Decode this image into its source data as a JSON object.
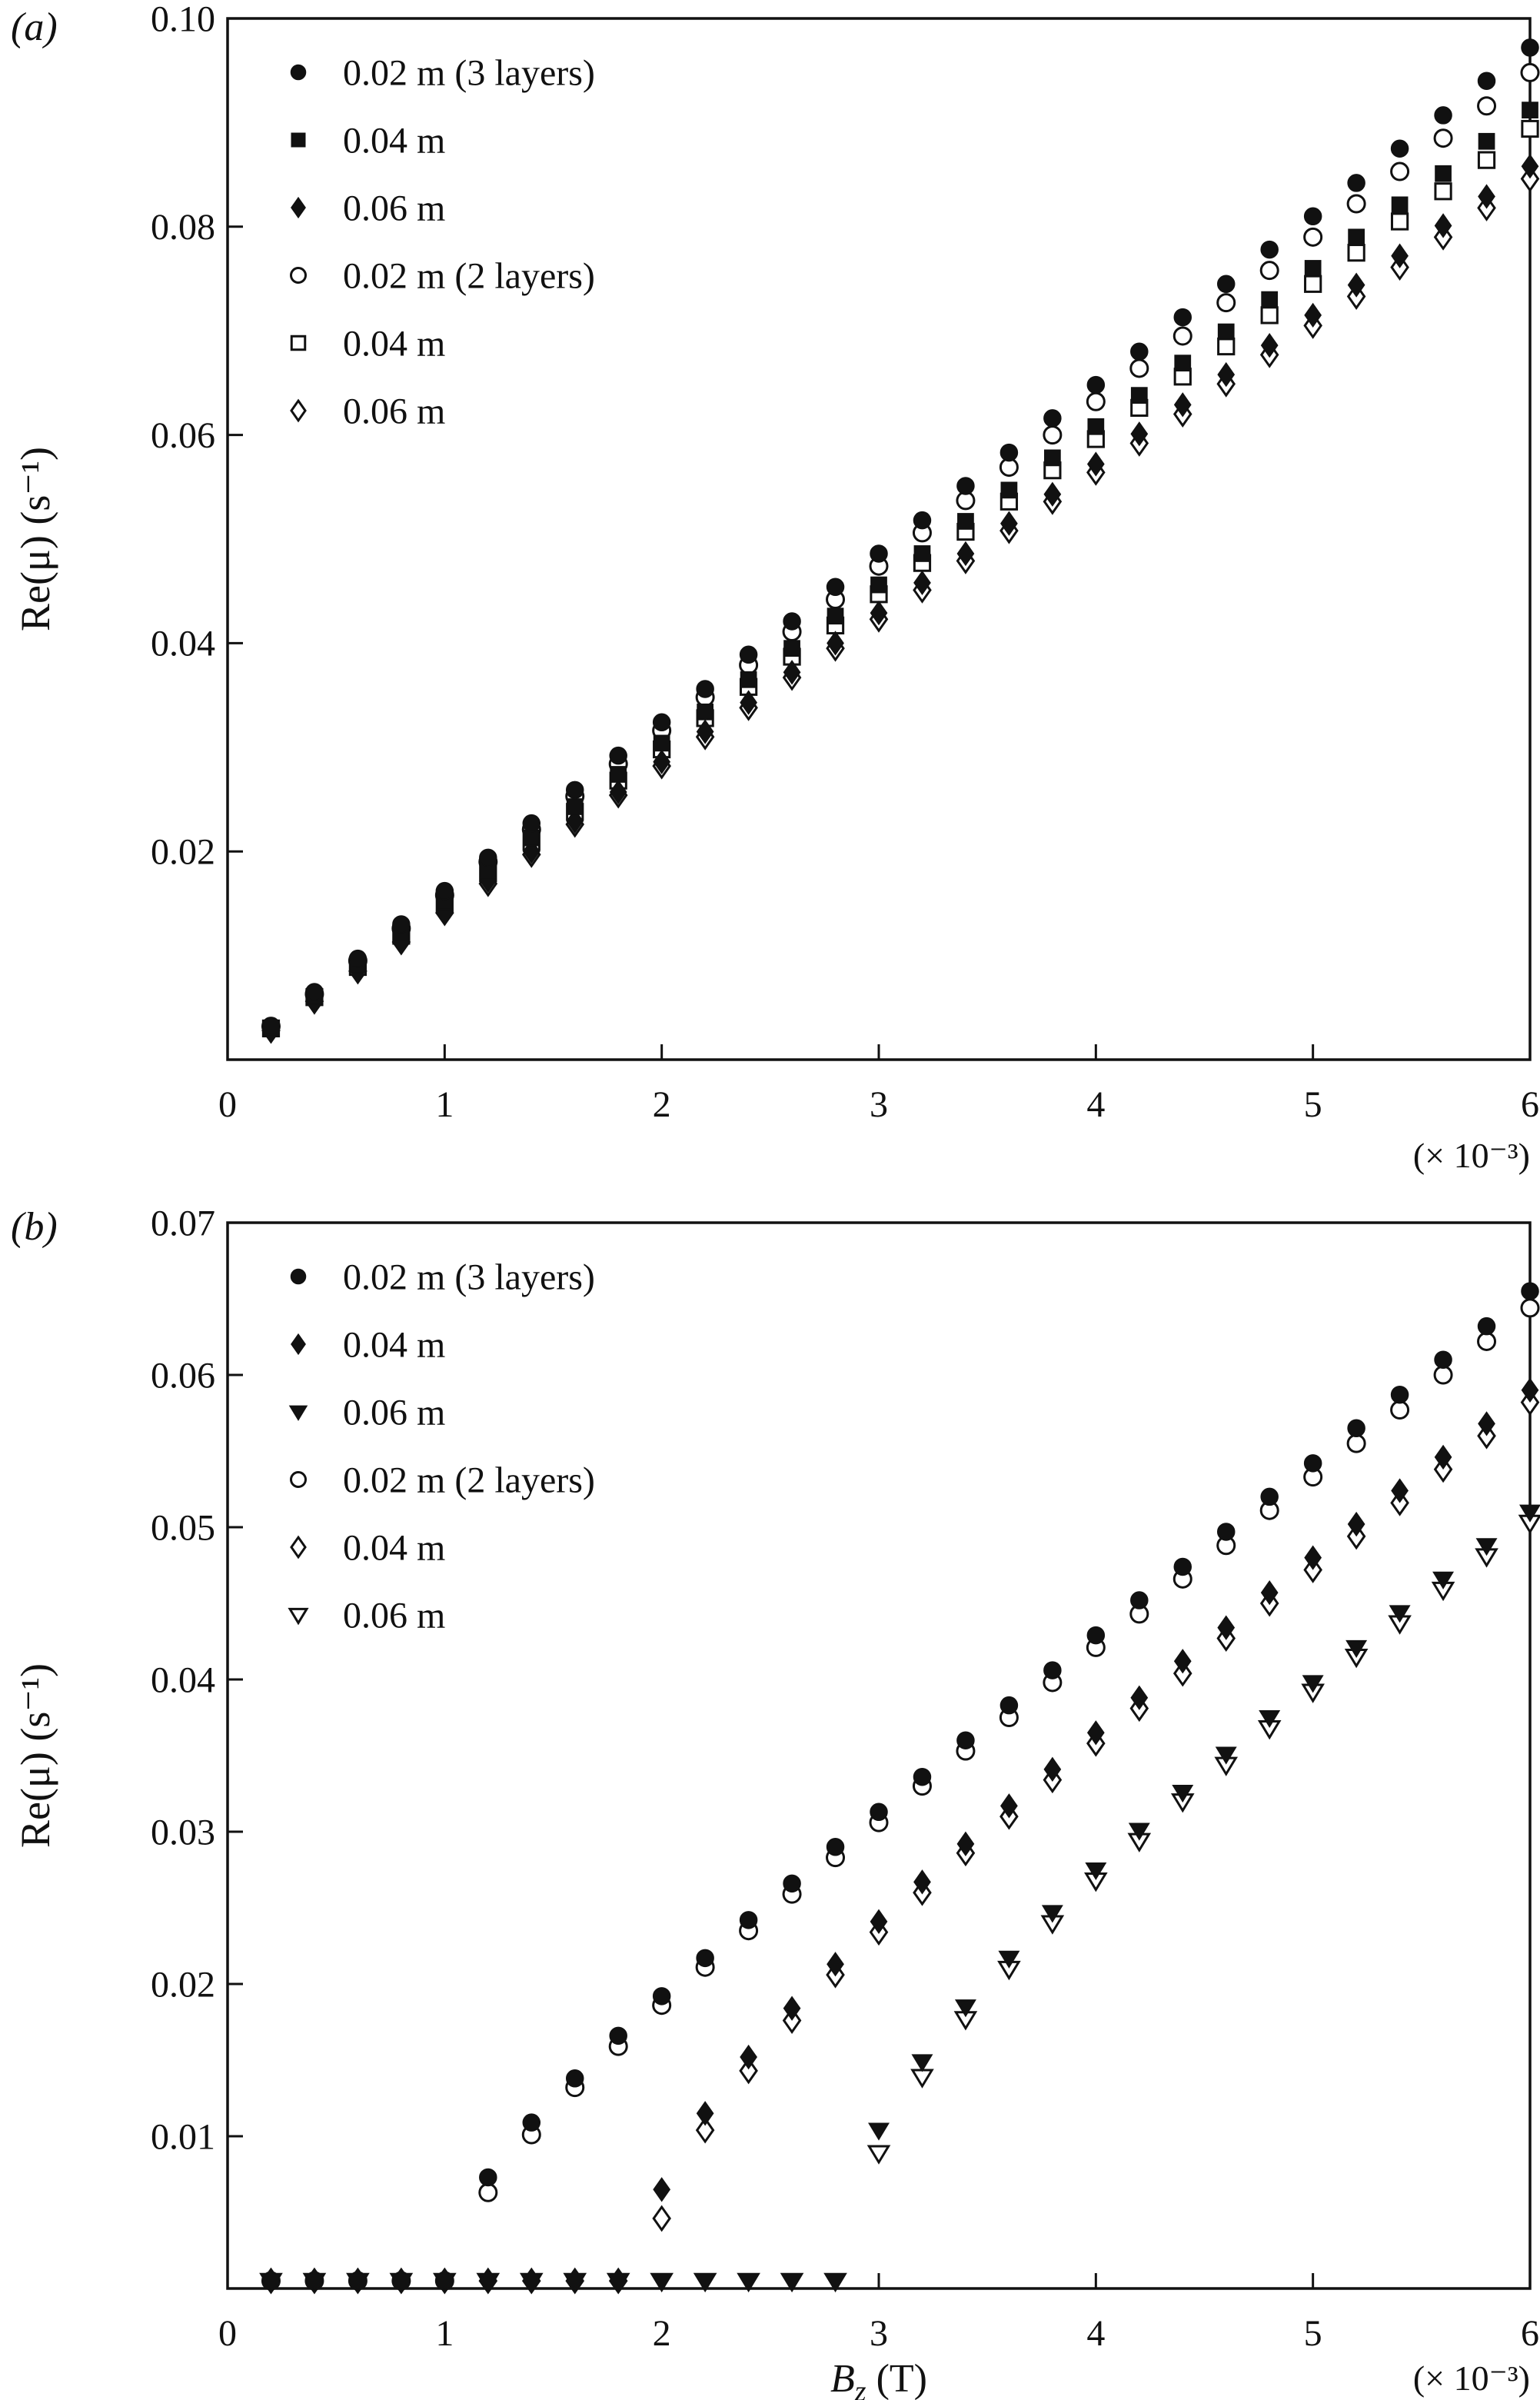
{
  "page": {
    "background": "#ffffff",
    "ink_color": "#111111"
  },
  "chart_data": [
    {
      "panel_label": "(a)",
      "type": "scatter",
      "title": "",
      "ylabel": "Re(μ) (s⁻¹)",
      "x_scale_label": "(× 10⁻³)",
      "xlim": [
        0,
        6
      ],
      "ylim": [
        0,
        0.1
      ],
      "xticks": [
        0,
        1,
        2,
        3,
        4,
        5,
        6
      ],
      "yticks": [
        0.02,
        0.04,
        0.06,
        0.08,
        0.1
      ],
      "ytick_labels": [
        "0.02",
        "0.04",
        "0.06",
        "0.08",
        "0.10"
      ],
      "grid": false,
      "legend_position": "upper-left",
      "x": [
        0.2,
        0.4,
        0.6,
        0.8,
        1.0,
        1.2,
        1.4,
        1.6,
        1.8,
        2.0,
        2.2,
        2.4,
        2.6,
        2.8,
        3.0,
        3.2,
        3.4,
        3.6,
        3.8,
        4.0,
        4.2,
        4.4,
        4.6,
        4.8,
        5.0,
        5.2,
        5.4,
        5.6,
        5.8,
        6.0
      ],
      "series": [
        {
          "name": "0.02 m (3 layers)",
          "marker": "circle",
          "fill": "filled",
          "y": [
            0.0032,
            0.0065,
            0.0097,
            0.013,
            0.0162,
            0.0194,
            0.0227,
            0.0259,
            0.0292,
            0.0324,
            0.0356,
            0.0389,
            0.0421,
            0.0454,
            0.0486,
            0.0518,
            0.0551,
            0.0583,
            0.0616,
            0.0648,
            0.068,
            0.0713,
            0.0745,
            0.0778,
            0.081,
            0.0842,
            0.0875,
            0.0907,
            0.094,
            0.0972
          ]
        },
        {
          "name": "0.04 m",
          "marker": "square",
          "fill": "filled",
          "y": [
            0.003,
            0.0061,
            0.0091,
            0.0122,
            0.0152,
            0.0182,
            0.0213,
            0.0243,
            0.0274,
            0.0304,
            0.0334,
            0.0365,
            0.0395,
            0.0426,
            0.0456,
            0.0486,
            0.0517,
            0.0547,
            0.0578,
            0.0608,
            0.0638,
            0.0669,
            0.0699,
            0.073,
            0.076,
            0.079,
            0.0821,
            0.0851,
            0.0882,
            0.0912
          ]
        },
        {
          "name": "0.06 m",
          "marker": "diamond",
          "fill": "filled",
          "y": [
            0.0029,
            0.0057,
            0.0086,
            0.0114,
            0.0143,
            0.0172,
            0.02,
            0.0229,
            0.0257,
            0.0286,
            0.0315,
            0.0343,
            0.0372,
            0.04,
            0.0429,
            0.0458,
            0.0486,
            0.0515,
            0.0543,
            0.0572,
            0.0601,
            0.0629,
            0.0658,
            0.0686,
            0.0715,
            0.0744,
            0.0772,
            0.0801,
            0.0829,
            0.0858
          ]
        },
        {
          "name": "0.02 m (2 layers)",
          "marker": "circle",
          "fill": "open",
          "y": [
            0.0032,
            0.0063,
            0.0095,
            0.0126,
            0.0158,
            0.019,
            0.0221,
            0.0253,
            0.0284,
            0.0316,
            0.0348,
            0.0379,
            0.0411,
            0.0442,
            0.0474,
            0.0506,
            0.0537,
            0.0569,
            0.06,
            0.0632,
            0.0664,
            0.0695,
            0.0727,
            0.0758,
            0.079,
            0.0822,
            0.0853,
            0.0885,
            0.0916,
            0.0948
          ]
        },
        {
          "name": "0.04 m",
          "marker": "square",
          "fill": "open",
          "y": [
            0.003,
            0.006,
            0.0089,
            0.0119,
            0.0149,
            0.0179,
            0.0209,
            0.0238,
            0.0268,
            0.0298,
            0.0328,
            0.0358,
            0.0387,
            0.0417,
            0.0447,
            0.0477,
            0.0507,
            0.0536,
            0.0566,
            0.0596,
            0.0626,
            0.0656,
            0.0685,
            0.0715,
            0.0745,
            0.0775,
            0.0805,
            0.0834,
            0.0864,
            0.0894
          ]
        },
        {
          "name": "0.06 m",
          "marker": "diamond",
          "fill": "open",
          "y": [
            0.0028,
            0.0056,
            0.0085,
            0.0113,
            0.0141,
            0.0169,
            0.0197,
            0.0226,
            0.0254,
            0.0282,
            0.031,
            0.0338,
            0.0367,
            0.0395,
            0.0423,
            0.0451,
            0.0479,
            0.0508,
            0.0536,
            0.0564,
            0.0592,
            0.062,
            0.0649,
            0.0677,
            0.0705,
            0.0733,
            0.0761,
            0.079,
            0.0818,
            0.0846
          ]
        }
      ]
    },
    {
      "panel_label": "(b)",
      "type": "scatter",
      "title": "",
      "ylabel": "Re(μ) (s⁻¹)",
      "xlabel": {
        "base": "B",
        "sub": "z",
        "unit": "(T)"
      },
      "x_scale_label": "(× 10⁻³)",
      "xlim": [
        0,
        6
      ],
      "ylim": [
        0,
        0.07
      ],
      "xticks": [
        0,
        1,
        2,
        3,
        4,
        5,
        6
      ],
      "yticks": [
        0.01,
        0.02,
        0.03,
        0.04,
        0.05,
        0.06,
        0.07
      ],
      "ytick_labels": [
        "0.01",
        "0.02",
        "0.03",
        "0.04",
        "0.05",
        "0.06",
        "0.07"
      ],
      "grid": false,
      "legend_position": "upper-left",
      "x": [
        0.2,
        0.4,
        0.6,
        0.8,
        1.0,
        1.2,
        1.4,
        1.6,
        1.8,
        2.0,
        2.2,
        2.4,
        2.6,
        2.8,
        3.0,
        3.2,
        3.4,
        3.6,
        3.8,
        4.0,
        4.2,
        4.4,
        4.6,
        4.8,
        5.0,
        5.2,
        5.4,
        5.6,
        5.8,
        6.0
      ],
      "series": [
        {
          "name": "0.02 m (3 layers)",
          "marker": "circle",
          "fill": "filled",
          "onset_x": 1.0,
          "y": [
            0.0005,
            0.0005,
            0.0005,
            0.0005,
            0.0005,
            0.0073,
            0.0109,
            0.0138,
            0.0166,
            0.0192,
            0.0217,
            0.0242,
            0.0266,
            0.029,
            0.0313,
            0.0336,
            0.036,
            0.0383,
            0.0406,
            0.0429,
            0.0452,
            0.0474,
            0.0497,
            0.052,
            0.0542,
            0.0565,
            0.0587,
            0.061,
            0.0632,
            0.0655
          ]
        },
        {
          "name": "0.04 m",
          "marker": "diamond",
          "fill": "filled",
          "onset_x": 1.9,
          "y": [
            0.0005,
            0.0005,
            0.0005,
            0.0005,
            0.0005,
            0.0005,
            0.0005,
            0.0005,
            0.0005,
            0.0065,
            0.0115,
            0.0152,
            0.0184,
            0.0213,
            0.0241,
            0.0267,
            0.0292,
            0.0317,
            0.0341,
            0.0365,
            0.0388,
            0.0412,
            0.0434,
            0.0457,
            0.048,
            0.0502,
            0.0524,
            0.0546,
            0.0568,
            0.059
          ]
        },
        {
          "name": "0.06 m",
          "marker": "triangle-down",
          "fill": "filled",
          "onset_x": 2.8,
          "y": [
            0.0005,
            0.0005,
            0.0005,
            0.0005,
            0.0005,
            0.0005,
            0.0005,
            0.0005,
            0.0005,
            0.0005,
            0.0005,
            0.0005,
            0.0005,
            0.0005,
            0.0104,
            0.0149,
            0.0185,
            0.0217,
            0.0247,
            0.0275,
            0.0301,
            0.0326,
            0.0351,
            0.0375,
            0.0398,
            0.0421,
            0.0444,
            0.0466,
            0.0488,
            0.051
          ]
        },
        {
          "name": "0.02 m (2 layers)",
          "marker": "circle",
          "fill": "open",
          "onset_x": 1.05,
          "y": [
            0.0005,
            0.0005,
            0.0005,
            0.0005,
            0.0005,
            0.0063,
            0.0101,
            0.0132,
            0.0159,
            0.0186,
            0.0211,
            0.0235,
            0.0259,
            0.0283,
            0.0306,
            0.033,
            0.0353,
            0.0375,
            0.0398,
            0.0421,
            0.0443,
            0.0466,
            0.0488,
            0.0511,
            0.0533,
            0.0555,
            0.0577,
            0.06,
            0.0622,
            0.0644
          ]
        },
        {
          "name": "0.04 m",
          "marker": "diamond",
          "fill": "open",
          "onset_x": 1.95,
          "y": [
            0.0005,
            0.0005,
            0.0005,
            0.0005,
            0.0005,
            0.0005,
            0.0005,
            0.0005,
            0.0005,
            0.0046,
            0.0104,
            0.0143,
            0.0176,
            0.0206,
            0.0234,
            0.026,
            0.0286,
            0.031,
            0.0334,
            0.0358,
            0.0381,
            0.0404,
            0.0427,
            0.045,
            0.0472,
            0.0494,
            0.0516,
            0.0538,
            0.056,
            0.0582
          ]
        },
        {
          "name": "0.06 m",
          "marker": "triangle-down",
          "fill": "open",
          "onset_x": 2.85,
          "y": [
            0.0005,
            0.0005,
            0.0005,
            0.0005,
            0.0005,
            0.0005,
            0.0005,
            0.0005,
            0.0005,
            0.0005,
            0.0005,
            0.0005,
            0.0005,
            0.0005,
            0.0089,
            0.0139,
            0.0177,
            0.021,
            0.024,
            0.0268,
            0.0294,
            0.032,
            0.0344,
            0.0368,
            0.0392,
            0.0415,
            0.0437,
            0.0459,
            0.0481,
            0.0503
          ]
        }
      ]
    }
  ]
}
